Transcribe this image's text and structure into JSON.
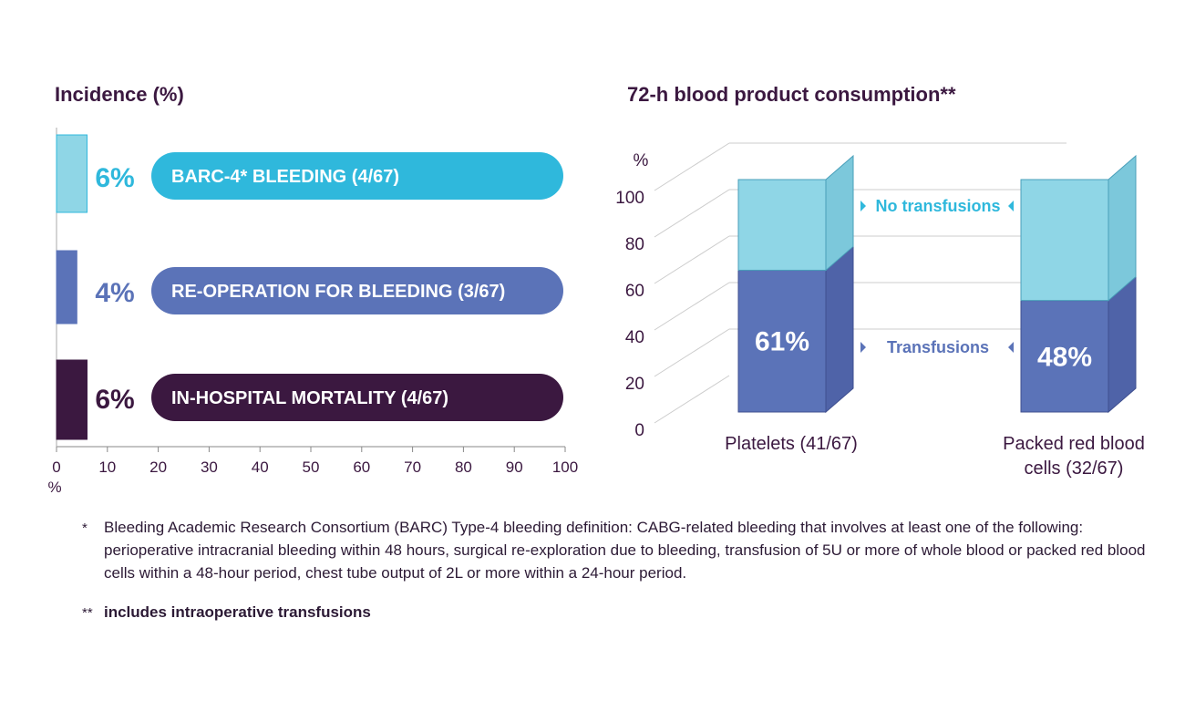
{
  "chart_data": [
    {
      "type": "bar",
      "orientation": "horizontal",
      "title": "Incidence (%)",
      "xlabel": "%",
      "xlim": [
        0,
        100
      ],
      "ticks": [
        "0",
        "10",
        "20",
        "30",
        "40",
        "50",
        "60",
        "70",
        "80",
        "90",
        "100"
      ],
      "categories": [
        "BARC-4* BLEEDING (4/67)",
        "RE-OPERATION FOR BLEEDING (3/67)",
        "IN-HOSPITAL MORTALITY (4/67)"
      ],
      "values": [
        6,
        4,
        6
      ],
      "value_labels": [
        "6%",
        "4%",
        "6%"
      ],
      "colors": [
        "#2fb8dc",
        "#5b73b8",
        "#3b1840"
      ],
      "light_colors": [
        "#8fd6e6",
        "#5b73b8",
        "#3b1840"
      ]
    },
    {
      "type": "bar",
      "stacked": true,
      "title": "72-h blood product consumption**",
      "ylabel": "%",
      "ylim": [
        0,
        100
      ],
      "ticks": [
        "0",
        "20",
        "40",
        "60",
        "80",
        "100"
      ],
      "categories": [
        "Platelets (41/67)",
        "Packed red blood cells (32/67)"
      ],
      "category_lines": [
        [
          "Platelets (41/67)"
        ],
        [
          "Packed red blood",
          "cells (32/67)"
        ]
      ],
      "series": [
        {
          "name": "Transfusions",
          "values": [
            61,
            48
          ],
          "color": "#5b73b8"
        },
        {
          "name": "No transfusions",
          "values": [
            39,
            52
          ],
          "color": "#8fd6e6"
        }
      ],
      "value_labels": [
        "61%",
        "48%"
      ]
    }
  ],
  "footnotes": {
    "star_mark": "*",
    "star_text": "Bleeding Academic Research Consortium (BARC) Type-4 bleeding definition: CABG-related bleeding that involves at least one of the following: perioperative intracranial bleeding within 48 hours, surgical re-exploration due to bleeding, transfusion of 5U or more of whole blood or packed red blood cells within a 48-hour period, chest tube output of 2L or more within a 24-hour period.",
    "double_star_mark": "**",
    "double_star_text": "includes intraoperative transfusions"
  }
}
